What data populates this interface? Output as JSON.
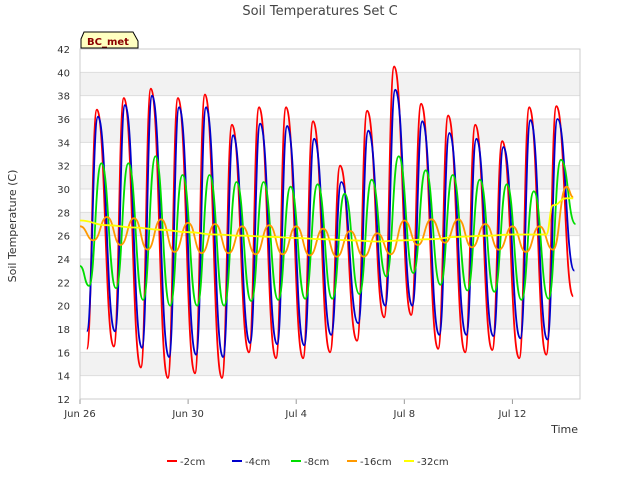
{
  "chart_data": {
    "type": "line",
    "title": "Soil Temperatures Set C",
    "xlabel": "Time",
    "ylabel": "Soil Temperature (C)",
    "badge": "BC_met",
    "xlim": [
      "2024-06-26T00:00",
      "2024-07-14T12:00"
    ],
    "ylim": [
      12,
      42
    ],
    "yticks": [
      12,
      14,
      16,
      18,
      20,
      22,
      24,
      26,
      28,
      30,
      32,
      34,
      36,
      38,
      40,
      42
    ],
    "xticks": [
      {
        "label": "Jun 26",
        "date": "2024-06-26"
      },
      {
        "label": "Jun 30",
        "date": "2024-06-30"
      },
      {
        "label": "Jul 4",
        "date": "2024-07-04"
      },
      {
        "label": "Jul 8",
        "date": "2024-07-08"
      },
      {
        "label": "Jul 12",
        "date": "2024-07-12"
      }
    ],
    "grid": "horizontal bands",
    "legend_position": "bottom",
    "series": [
      {
        "name": "-2cm",
        "color": "#ff0000",
        "dates": [
          "2024-06-26T06:00",
          "2024-06-26T15:00",
          "2024-06-27T06:00",
          "2024-06-27T15:00",
          "2024-06-28T06:00",
          "2024-06-28T15:00",
          "2024-06-29T06:00",
          "2024-06-29T15:00",
          "2024-06-30T06:00",
          "2024-06-30T15:00",
          "2024-07-01T06:00",
          "2024-07-01T15:00",
          "2024-07-02T06:00",
          "2024-07-02T15:00",
          "2024-07-03T06:00",
          "2024-07-03T15:00",
          "2024-07-04T06:00",
          "2024-07-04T15:00",
          "2024-07-05T06:00",
          "2024-07-05T15:00",
          "2024-07-06T06:00",
          "2024-07-06T15:00",
          "2024-07-07T06:00",
          "2024-07-07T15:00",
          "2024-07-08T06:00",
          "2024-07-08T15:00",
          "2024-07-09T06:00",
          "2024-07-09T15:00",
          "2024-07-10T06:00",
          "2024-07-10T15:00",
          "2024-07-11T06:00",
          "2024-07-11T15:00",
          "2024-07-12T06:00",
          "2024-07-12T15:00",
          "2024-07-13T06:00",
          "2024-07-13T15:00",
          "2024-07-14T06:00"
        ],
        "values": [
          16.3,
          36.8,
          16.5,
          37.8,
          14.7,
          38.6,
          13.8,
          37.8,
          14.2,
          38.1,
          13.8,
          35.5,
          16.0,
          37.0,
          15.5,
          37.0,
          15.5,
          35.8,
          16.0,
          32.0,
          17.0,
          36.7,
          19.0,
          40.5,
          19.2,
          37.3,
          16.3,
          36.3,
          16.0,
          35.5,
          16.2,
          34.1,
          15.5,
          37.0,
          15.8,
          37.1,
          20.8
        ]
      },
      {
        "name": "-4cm",
        "color": "#0000cc",
        "dates": [
          "2024-06-26T06:00",
          "2024-06-26T16:00",
          "2024-06-27T07:00",
          "2024-06-27T16:00",
          "2024-06-28T07:00",
          "2024-06-28T16:00",
          "2024-06-29T07:00",
          "2024-06-29T16:00",
          "2024-06-30T07:00",
          "2024-06-30T16:00",
          "2024-07-01T07:00",
          "2024-07-01T16:00",
          "2024-07-02T07:00",
          "2024-07-02T16:00",
          "2024-07-03T07:00",
          "2024-07-03T16:00",
          "2024-07-04T07:00",
          "2024-07-04T16:00",
          "2024-07-05T07:00",
          "2024-07-05T16:00",
          "2024-07-06T07:00",
          "2024-07-06T16:00",
          "2024-07-07T07:00",
          "2024-07-07T16:00",
          "2024-07-08T07:00",
          "2024-07-08T16:00",
          "2024-07-09T07:00",
          "2024-07-09T16:00",
          "2024-07-10T07:00",
          "2024-07-10T16:00",
          "2024-07-11T07:00",
          "2024-07-11T16:00",
          "2024-07-12T07:00",
          "2024-07-12T16:00",
          "2024-07-13T07:00",
          "2024-07-13T16:00",
          "2024-07-14T07:00"
        ],
        "values": [
          17.8,
          36.2,
          17.8,
          37.2,
          16.4,
          38.0,
          15.6,
          37.0,
          15.8,
          37.0,
          15.6,
          34.6,
          16.8,
          35.6,
          16.7,
          35.4,
          16.6,
          34.3,
          17.5,
          30.6,
          18.5,
          35.0,
          20.0,
          38.5,
          20.0,
          35.8,
          17.5,
          34.8,
          17.5,
          34.3,
          17.4,
          33.6,
          17.2,
          35.9,
          17.1,
          36.0,
          23.0
        ]
      },
      {
        "name": "-8cm",
        "color": "#00dd00",
        "dates": [
          "2024-06-26T00:00",
          "2024-06-26T08:00",
          "2024-06-26T19:00",
          "2024-06-27T08:00",
          "2024-06-27T19:00",
          "2024-06-28T08:00",
          "2024-06-28T19:00",
          "2024-06-29T08:00",
          "2024-06-29T19:00",
          "2024-06-30T08:00",
          "2024-06-30T19:00",
          "2024-07-01T08:00",
          "2024-07-01T19:00",
          "2024-07-02T08:00",
          "2024-07-02T19:00",
          "2024-07-03T08:00",
          "2024-07-03T19:00",
          "2024-07-04T08:00",
          "2024-07-04T19:00",
          "2024-07-05T08:00",
          "2024-07-05T19:00",
          "2024-07-06T08:00",
          "2024-07-06T19:00",
          "2024-07-07T08:00",
          "2024-07-07T19:00",
          "2024-07-08T08:00",
          "2024-07-08T19:00",
          "2024-07-09T08:00",
          "2024-07-09T19:00",
          "2024-07-10T08:00",
          "2024-07-10T19:00",
          "2024-07-11T08:00",
          "2024-07-11T19:00",
          "2024-07-12T08:00",
          "2024-07-12T19:00",
          "2024-07-13T08:00",
          "2024-07-13T19:00",
          "2024-07-14T08:00"
        ],
        "values": [
          23.4,
          21.7,
          32.2,
          21.5,
          32.2,
          20.5,
          32.8,
          20.0,
          31.2,
          20.0,
          31.2,
          20.0,
          30.6,
          20.4,
          30.6,
          20.5,
          30.2,
          20.6,
          30.4,
          20.6,
          29.6,
          21.0,
          30.8,
          22.5,
          32.8,
          22.8,
          31.6,
          21.8,
          31.2,
          21.3,
          30.8,
          21.2,
          30.4,
          20.5,
          29.8,
          20.6,
          32.5,
          27.0
        ]
      },
      {
        "name": "-16cm",
        "color": "#ff9900",
        "dates": [
          "2024-06-26T00:00",
          "2024-06-26T12:00",
          "2024-06-27T00:00",
          "2024-06-27T12:00",
          "2024-06-28T00:00",
          "2024-06-28T12:00",
          "2024-06-29T00:00",
          "2024-06-29T12:00",
          "2024-06-30T00:00",
          "2024-06-30T12:00",
          "2024-07-01T00:00",
          "2024-07-01T12:00",
          "2024-07-02T00:00",
          "2024-07-02T12:00",
          "2024-07-03T00:00",
          "2024-07-03T12:00",
          "2024-07-04T00:00",
          "2024-07-04T12:00",
          "2024-07-05T00:00",
          "2024-07-05T12:00",
          "2024-07-06T00:00",
          "2024-07-06T12:00",
          "2024-07-07T00:00",
          "2024-07-07T12:00",
          "2024-07-08T00:00",
          "2024-07-08T12:00",
          "2024-07-09T00:00",
          "2024-07-09T12:00",
          "2024-07-10T00:00",
          "2024-07-10T12:00",
          "2024-07-11T00:00",
          "2024-07-11T12:00",
          "2024-07-12T00:00",
          "2024-07-12T12:00",
          "2024-07-13T00:00",
          "2024-07-13T12:00",
          "2024-07-14T00:00",
          "2024-07-14T06:00"
        ],
        "values": [
          26.8,
          25.6,
          27.6,
          25.2,
          27.5,
          24.8,
          27.4,
          24.6,
          27.1,
          24.5,
          27.0,
          24.5,
          26.8,
          24.4,
          26.9,
          24.4,
          26.8,
          24.3,
          26.6,
          24.2,
          26.4,
          24.2,
          26.2,
          24.4,
          27.3,
          25.2,
          27.4,
          25.4,
          27.4,
          25.0,
          27.0,
          24.8,
          26.8,
          24.6,
          26.8,
          24.8,
          30.2,
          29.3
        ]
      },
      {
        "name": "-32cm",
        "color": "#ffff00",
        "dates": [
          "2024-06-26T00:00",
          "2024-06-27T00:00",
          "2024-06-28T00:00",
          "2024-06-29T00:00",
          "2024-06-30T00:00",
          "2024-07-01T00:00",
          "2024-07-02T00:00",
          "2024-07-03T00:00",
          "2024-07-04T00:00",
          "2024-07-05T00:00",
          "2024-07-06T00:00",
          "2024-07-07T00:00",
          "2024-07-08T00:00",
          "2024-07-09T00:00",
          "2024-07-10T00:00",
          "2024-07-11T00:00",
          "2024-07-12T00:00",
          "2024-07-13T00:00",
          "2024-07-13T06:00",
          "2024-07-13T12:00",
          "2024-07-14T00:00",
          "2024-07-14T06:00"
        ],
        "values": [
          27.3,
          26.9,
          26.7,
          26.5,
          26.3,
          26.1,
          26.0,
          25.9,
          25.8,
          25.7,
          25.6,
          25.5,
          25.6,
          25.7,
          25.9,
          26.0,
          26.1,
          26.1,
          26.1,
          28.6,
          29.2,
          29.2
        ]
      }
    ]
  }
}
